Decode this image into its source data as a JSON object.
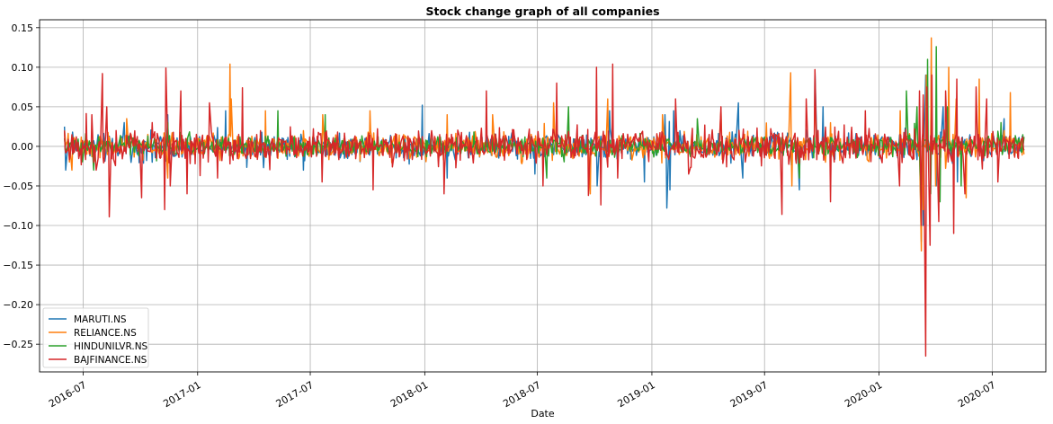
{
  "chart_data": {
    "type": "line",
    "title": "Stock change graph of all companies",
    "xlabel": "Date",
    "ylabel": "",
    "x_range": [
      "2016-06-01",
      "2020-08-31"
    ],
    "xlim": [
      "2016-04-22",
      "2020-09-25"
    ],
    "ylim": [
      -0.285,
      0.16
    ],
    "grid": true,
    "legend_position": "lower-left",
    "y_ticks": [
      0.15,
      0.1,
      0.05,
      0.0,
      -0.05,
      -0.1,
      -0.15,
      -0.2,
      -0.25
    ],
    "y_tick_labels": [
      "0.15",
      "0.10",
      "0.05",
      "0.00",
      "−0.05",
      "−0.10",
      "−0.15",
      "−0.20",
      "−0.25"
    ],
    "x_ticks": [
      "2016-07-01",
      "2017-01-01",
      "2017-07-01",
      "2018-01-01",
      "2018-07-01",
      "2019-01-01",
      "2019-07-01",
      "2020-01-01",
      "2020-07-01"
    ],
    "x_tick_labels": [
      "2016-07",
      "2017-01",
      "2017-07",
      "2018-01",
      "2018-07",
      "2019-01",
      "2019-07",
      "2020-01",
      "2020-07"
    ],
    "series": [
      {
        "name": "MARUTI.NS",
        "color": "#1f77b4",
        "points": [
          [
            "2016-06-01",
            0.025
          ],
          [
            "2016-06-03",
            -0.03
          ],
          [
            "2016-06-14",
            0.018
          ],
          [
            "2016-07-05",
            -0.012
          ],
          [
            "2016-09-05",
            0.03
          ],
          [
            "2016-10-20",
            -0.02
          ],
          [
            "2016-11-09",
            -0.05
          ],
          [
            "2016-11-14",
            0.04
          ],
          [
            "2017-02-15",
            0.045
          ],
          [
            "2017-06-20",
            -0.03
          ],
          [
            "2017-12-28",
            0.052
          ],
          [
            "2018-02-06",
            -0.04
          ],
          [
            "2018-06-27",
            -0.035
          ],
          [
            "2018-10-05",
            -0.05
          ],
          [
            "2018-10-25",
            0.045
          ],
          [
            "2018-12-20",
            -0.045
          ],
          [
            "2019-01-22",
            0.04
          ],
          [
            "2019-01-25",
            -0.078
          ],
          [
            "2019-01-30",
            -0.055
          ],
          [
            "2019-02-05",
            0.045
          ],
          [
            "2019-05-20",
            0.055
          ],
          [
            "2019-05-27",
            -0.04
          ],
          [
            "2019-08-26",
            -0.055
          ],
          [
            "2019-09-20",
            0.095
          ],
          [
            "2019-10-03",
            0.05
          ],
          [
            "2020-03-09",
            -0.12
          ],
          [
            "2020-03-12",
            -0.1
          ],
          [
            "2020-03-16",
            0.09
          ],
          [
            "2020-03-25",
            0.11
          ],
          [
            "2020-04-02",
            -0.05
          ],
          [
            "2020-04-13",
            0.05
          ],
          [
            "2020-05-06",
            -0.045
          ],
          [
            "2020-06-10",
            0.045
          ],
          [
            "2020-07-20",
            0.035
          ],
          [
            "2020-08-20",
            0.005
          ]
        ]
      },
      {
        "name": "RELIANCE.NS",
        "color": "#ff7f0e",
        "points": [
          [
            "2016-06-01",
            0.02
          ],
          [
            "2016-06-13",
            -0.03
          ],
          [
            "2016-09-09",
            0.035
          ],
          [
            "2016-11-14",
            -0.04
          ],
          [
            "2017-02-22",
            0.104
          ],
          [
            "2017-02-24",
            0.06
          ],
          [
            "2017-04-20",
            0.045
          ],
          [
            "2017-07-21",
            0.04
          ],
          [
            "2017-10-05",
            0.045
          ],
          [
            "2018-02-06",
            0.04
          ],
          [
            "2018-04-20",
            0.04
          ],
          [
            "2018-07-27",
            0.055
          ],
          [
            "2018-09-24",
            -0.06
          ],
          [
            "2018-10-22",
            0.06
          ],
          [
            "2019-01-18",
            0.04
          ],
          [
            "2019-04-22",
            0.045
          ],
          [
            "2019-08-12",
            0.093
          ],
          [
            "2019-08-14",
            -0.05
          ],
          [
            "2019-09-20",
            0.07
          ],
          [
            "2020-02-04",
            0.045
          ],
          [
            "2020-03-09",
            -0.132
          ],
          [
            "2020-03-12",
            -0.08
          ],
          [
            "2020-03-17",
            0.09
          ],
          [
            "2020-03-25",
            0.137
          ],
          [
            "2020-04-01",
            -0.05
          ],
          [
            "2020-04-22",
            0.1
          ],
          [
            "2020-05-04",
            0.06
          ],
          [
            "2020-05-20",
            -0.065
          ],
          [
            "2020-06-10",
            0.085
          ],
          [
            "2020-07-20",
            0.02
          ],
          [
            "2020-07-30",
            0.068
          ],
          [
            "2020-08-21",
            -0.01
          ]
        ]
      },
      {
        "name": "HINDUNILVR.NS",
        "color": "#2ca02c",
        "points": [
          [
            "2016-06-01",
            0.01
          ],
          [
            "2016-07-18",
            -0.03
          ],
          [
            "2016-11-14",
            0.03
          ],
          [
            "2017-05-10",
            0.045
          ],
          [
            "2017-07-25",
            0.04
          ],
          [
            "2018-07-16",
            -0.04
          ],
          [
            "2018-08-20",
            0.05
          ],
          [
            "2019-03-15",
            0.035
          ],
          [
            "2019-08-26",
            -0.04
          ],
          [
            "2020-02-14",
            0.07
          ],
          [
            "2020-03-02",
            0.05
          ],
          [
            "2020-03-09",
            -0.08
          ],
          [
            "2020-03-19",
            0.11
          ],
          [
            "2020-03-24",
            -0.06
          ],
          [
            "2020-04-02",
            0.126
          ],
          [
            "2020-04-08",
            -0.07
          ],
          [
            "2020-04-20",
            0.05
          ],
          [
            "2020-05-12",
            -0.05
          ],
          [
            "2020-07-15",
            0.03
          ],
          [
            "2020-08-21",
            0.012
          ]
        ]
      },
      {
        "name": "BAJFINANCE.NS",
        "color": "#d62728",
        "points": [
          [
            "2016-06-01",
            0.02
          ],
          [
            "2016-06-06",
            -0.005
          ],
          [
            "2016-07-15",
            0.04
          ],
          [
            "2016-07-22",
            -0.03
          ],
          [
            "2016-08-01",
            0.092
          ],
          [
            "2016-08-08",
            0.05
          ],
          [
            "2016-08-12",
            -0.089
          ],
          [
            "2016-08-23",
            0.02
          ],
          [
            "2016-10-03",
            -0.065
          ],
          [
            "2016-10-20",
            0.03
          ],
          [
            "2016-11-09",
            -0.08
          ],
          [
            "2016-11-11",
            0.099
          ],
          [
            "2016-11-18",
            -0.05
          ],
          [
            "2016-12-05",
            0.07
          ],
          [
            "2016-12-15",
            -0.06
          ],
          [
            "2017-01-20",
            0.055
          ],
          [
            "2017-02-02",
            -0.04
          ],
          [
            "2017-03-14",
            0.074
          ],
          [
            "2017-07-20",
            -0.045
          ],
          [
            "2017-10-10",
            -0.055
          ],
          [
            "2018-02-01",
            -0.06
          ],
          [
            "2018-04-10",
            0.07
          ],
          [
            "2018-07-10",
            -0.05
          ],
          [
            "2018-08-01",
            0.08
          ],
          [
            "2018-09-21",
            -0.062
          ],
          [
            "2018-10-04",
            0.1
          ],
          [
            "2018-10-11",
            -0.074
          ],
          [
            "2018-10-30",
            0.104
          ],
          [
            "2018-11-07",
            -0.04
          ],
          [
            "2019-02-08",
            0.06
          ],
          [
            "2019-03-01",
            -0.035
          ],
          [
            "2019-04-22",
            0.05
          ],
          [
            "2019-07-29",
            -0.086
          ],
          [
            "2019-09-06",
            0.06
          ],
          [
            "2019-09-20",
            0.097
          ],
          [
            "2019-10-15",
            -0.07
          ],
          [
            "2019-12-10",
            0.045
          ],
          [
            "2020-02-03",
            -0.05
          ],
          [
            "2020-03-06",
            0.07
          ],
          [
            "2020-03-09",
            -0.1
          ],
          [
            "2020-03-12",
            0.065
          ],
          [
            "2020-03-16",
            -0.265
          ],
          [
            "2020-03-18",
            0.075
          ],
          [
            "2020-03-23",
            -0.125
          ],
          [
            "2020-03-26",
            0.09
          ],
          [
            "2020-04-06",
            -0.095
          ],
          [
            "2020-04-17",
            0.07
          ],
          [
            "2020-04-30",
            -0.11
          ],
          [
            "2020-05-05",
            0.085
          ],
          [
            "2020-05-18",
            -0.06
          ],
          [
            "2020-06-05",
            0.075
          ],
          [
            "2020-06-22",
            0.06
          ],
          [
            "2020-07-10",
            -0.045
          ],
          [
            "2020-08-21",
            -0.005
          ]
        ]
      }
    ]
  }
}
